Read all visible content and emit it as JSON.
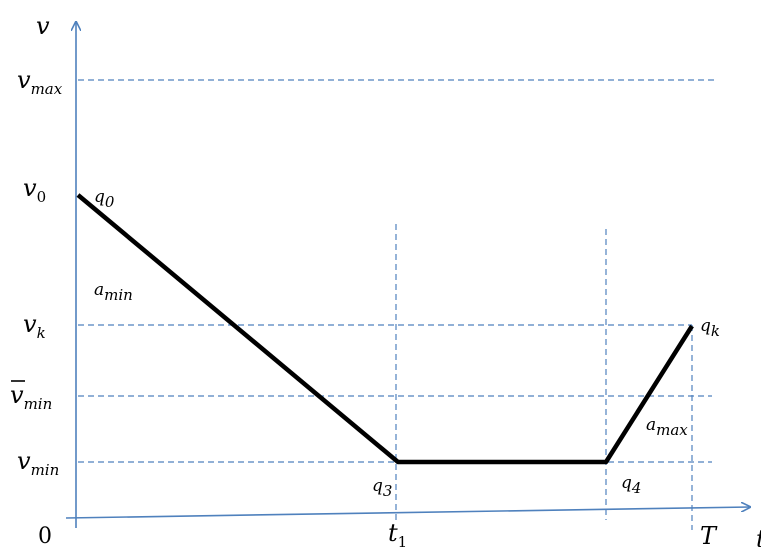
{
  "diagram": {
    "colors": {
      "axis": "#4f81bd",
      "guide": "#4f81bd",
      "path": "#000000"
    },
    "axes": {
      "y_label": "v",
      "x_label": "t",
      "origin": "0",
      "T_label": "T"
    },
    "y_levels": {
      "v_max": {
        "base": "v",
        "sub": "max"
      },
      "v_0": {
        "base": "v",
        "sub": "0"
      },
      "v_k": {
        "base": "v",
        "sub": "k"
      },
      "v_bar_min": {
        "base": "v",
        "sub": "min"
      },
      "v_min": {
        "base": "v",
        "sub": "min"
      }
    },
    "x_marks": {
      "t_1": {
        "base": "t",
        "sub": "1"
      }
    },
    "points": {
      "q0": {
        "base": "q",
        "sub": "0"
      },
      "q3": {
        "base": "q",
        "sub": "3"
      },
      "q4": {
        "base": "q",
        "sub": "4"
      },
      "qk": {
        "base": "q",
        "sub": "k"
      }
    },
    "segments": {
      "a_min": {
        "base": "a",
        "sub": "min"
      },
      "a_max": {
        "base": "a",
        "sub": "max"
      }
    }
  }
}
